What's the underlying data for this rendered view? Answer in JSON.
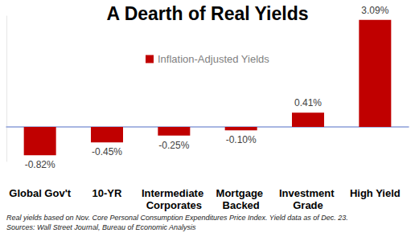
{
  "chart_data": {
    "type": "bar",
    "title": "A Dearth of Real Yields",
    "categories": [
      "Global Gov't",
      "10-YR",
      "Intermediate Corporates",
      "Mortgage Backed",
      "Investment Grade",
      "High Yield"
    ],
    "series": [
      {
        "name": "Inflation-Adjusted Yields",
        "color": "#c00000",
        "values": [
          -0.82,
          -0.45,
          -0.25,
          -0.1,
          0.41,
          3.09
        ],
        "value_labels": [
          "-0.82%",
          "-0.45%",
          "-0.25%",
          "-0.10%",
          "0.41%",
          "3.09%"
        ]
      }
    ],
    "ylim": [
      -1.0,
      3.2
    ],
    "tick_labels": "x",
    "grid": false,
    "legend": "top",
    "data_labels": true,
    "footnote": [
      "Real yields based on Nov. Core Personal Consumption Expenditures Price Index. Yield data as of Dec. 23.",
      "Sources: Wall Street Journal, Bureau of Economic Analysis"
    ]
  }
}
